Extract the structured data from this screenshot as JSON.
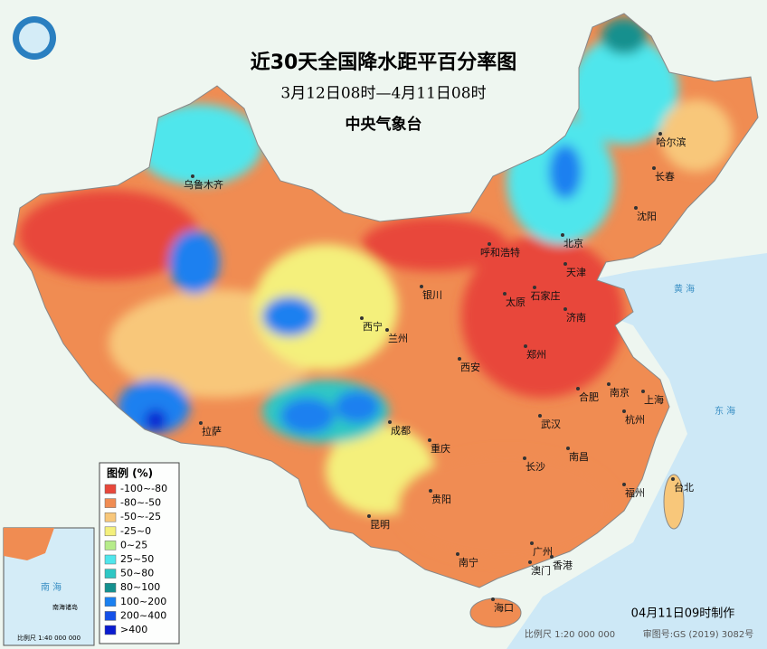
{
  "title": "近30天全国降水距平百分率图",
  "subtitle": "3月12日08时—4月11日08时",
  "issuer": "中央气象台",
  "legend": {
    "title": "图例 (%)",
    "items": [
      {
        "label": "-100~-80",
        "color": "#e8473a"
      },
      {
        "label": "-80~-50",
        "color": "#f08c52"
      },
      {
        "label": "-50~-25",
        "color": "#f8c77a"
      },
      {
        "label": "-25~0",
        "color": "#f4f07c"
      },
      {
        "label": "0~25",
        "color": "#b6ec8a"
      },
      {
        "label": "25~50",
        "color": "#4fe6ec"
      },
      {
        "label": "50~80",
        "color": "#2ec7c4"
      },
      {
        "label": "80~100",
        "color": "#13908e"
      },
      {
        "label": "100~200",
        "color": "#1a80f0"
      },
      {
        "label": "200~400",
        "color": "#1450e8"
      },
      {
        "label": ">400",
        "color": "#0a1bd0"
      }
    ]
  },
  "cities": [
    "乌鲁木齐",
    "哈尔滨",
    "长春",
    "沈阳",
    "北京",
    "天津",
    "呼和浩特",
    "石家庄",
    "太原",
    "济南",
    "银川",
    "西宁",
    "兰州",
    "西安",
    "郑州",
    "合肥",
    "南京",
    "上海",
    "杭州",
    "武汉",
    "成都",
    "重庆",
    "拉萨",
    "长沙",
    "南昌",
    "贵阳",
    "昆明",
    "福州",
    "台北",
    "广州",
    "南宁",
    "澳门",
    "香港",
    "海口"
  ],
  "seas": [
    "黄 海",
    "东 海",
    "南 海"
  ],
  "inset": {
    "label": "南海诸岛",
    "scale": "比例尺 1:40 000 000"
  },
  "footer": {
    "made": "04月11日09时制作",
    "scale": "比例尺 1:20 000 000",
    "review": "审图号:GS (2019) 3082号"
  }
}
